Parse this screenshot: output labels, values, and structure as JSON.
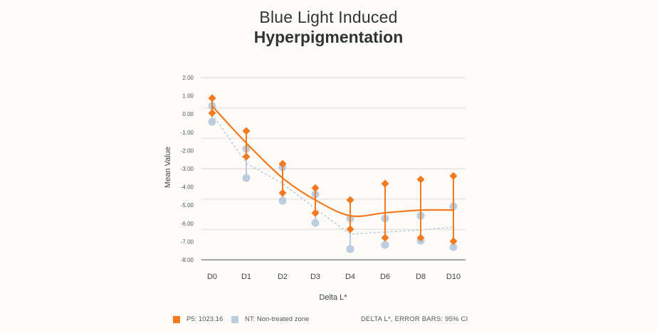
{
  "title": {
    "line1": "Blue Light Induced",
    "line2": "Hyperpigmentation"
  },
  "colors": {
    "p5": "#f47a20",
    "nt": "#bccddf",
    "grid": "#e2e0da",
    "axis": "#8a8a8a"
  },
  "legend": {
    "items": [
      {
        "label": "P5: 1023.16",
        "color": "#f47a20"
      },
      {
        "label": "NT: Non-treated zone",
        "color": "#bccddf"
      }
    ],
    "note": "DELTA L*, ERROR BARS: 95% CI"
  },
  "chart_data": {
    "type": "line",
    "title": "Blue Light Induced Hyperpigmentation",
    "xlabel": "Delta L*",
    "ylabel": "Mean Value",
    "categories": [
      "D0",
      "D1",
      "D2",
      "D3",
      "D4",
      "D6",
      "D8",
      "D10"
    ],
    "ylim": [
      -8,
      2
    ],
    "yticks": [
      2,
      1,
      0,
      -1,
      -2,
      -3,
      -4,
      -5,
      -6,
      -7,
      -8
    ],
    "ytick_labels": [
      "2.00",
      "1.00",
      "0.00",
      "-1.00",
      "-2.00",
      "-3.00",
      "-4.00",
      "-5.00",
      "-6.00",
      "-7.00",
      "-8.00"
    ],
    "grid": true,
    "legend_position": "bottom-left",
    "error_bars": "95% CI",
    "series": [
      {
        "name": "P5: 1023.16",
        "style": "solid",
        "marker": "diamond",
        "values": [
          0.44,
          -1.59,
          -3.51,
          -4.72,
          -5.58,
          -5.42,
          -5.27,
          -5.27
        ],
        "ci_upper": [
          0.87,
          -0.93,
          -2.73,
          -4.06,
          -4.72,
          -3.82,
          -3.59,
          -3.4
        ],
        "ci_lower": [
          0.05,
          -2.34,
          -4.33,
          -5.43,
          -6.32,
          -6.79,
          -6.79,
          -6.98
        ]
      },
      {
        "name": "NT: Non-treated zone",
        "style": "dotted",
        "marker": "circle",
        "values": [
          0.0,
          -2.69,
          -3.82,
          -5.19,
          -6.59,
          -6.48,
          -6.36,
          -6.2
        ],
        "ci_upper": [
          0.44,
          -1.91,
          -2.92,
          -4.41,
          -5.73,
          -5.73,
          -5.58,
          -5.07
        ],
        "ci_lower": [
          -0.42,
          -3.51,
          -4.76,
          -5.97,
          -7.41,
          -7.18,
          -6.95,
          -7.3
        ]
      }
    ]
  }
}
